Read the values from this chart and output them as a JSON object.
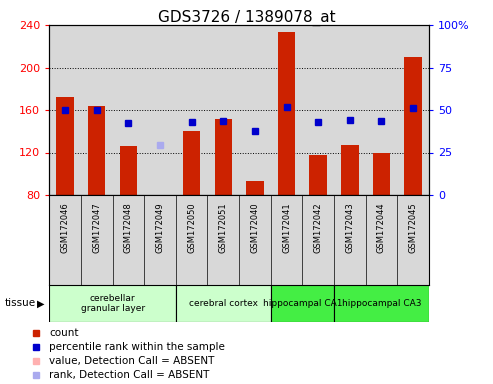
{
  "title": "GDS3726 / 1389078_at",
  "samples": [
    "GSM172046",
    "GSM172047",
    "GSM172048",
    "GSM172049",
    "GSM172050",
    "GSM172051",
    "GSM172040",
    "GSM172041",
    "GSM172042",
    "GSM172043",
    "GSM172044",
    "GSM172045"
  ],
  "count_values": [
    172,
    164,
    126,
    null,
    140,
    152,
    93,
    233,
    118,
    127,
    120,
    210
  ],
  "absent_bar_value": [
    null,
    null,
    null,
    80,
    null,
    null,
    null,
    null,
    null,
    null,
    null,
    null
  ],
  "percentile_values": [
    160,
    160,
    148,
    null,
    149,
    150,
    140,
    163,
    149,
    151,
    150,
    162
  ],
  "absent_percentile_value": [
    null,
    null,
    null,
    127,
    null,
    null,
    null,
    null,
    null,
    null,
    null,
    null
  ],
  "left_ylim": [
    80,
    240
  ],
  "left_yticks": [
    80,
    120,
    160,
    200,
    240
  ],
  "right_ylim": [
    0,
    100
  ],
  "right_yticks": [
    0,
    25,
    50,
    75,
    100
  ],
  "right_yticklabels": [
    "0",
    "25",
    "50",
    "75",
    "100%"
  ],
  "bar_color": "#cc2200",
  "absent_bar_color": "#ffb0b0",
  "dot_color": "#0000cc",
  "absent_dot_color": "#aaaaee",
  "bar_width": 0.55,
  "tissues": [
    {
      "label": "cerebellar\ngranular layer",
      "start": 0,
      "end": 3,
      "color": "#ccffcc"
    },
    {
      "label": "cerebral cortex",
      "start": 4,
      "end": 6,
      "color": "#ccffcc"
    },
    {
      "label": "hippocampal CA1",
      "start": 7,
      "end": 8,
      "color": "#44ee44"
    },
    {
      "label": "hippocampal CA3",
      "start": 9,
      "end": 11,
      "color": "#44ee44"
    }
  ],
  "plot_bg": "#ffffff",
  "axis_bg": "#d8d8d8",
  "title_fontsize": 11,
  "ytick_fontsize": 8,
  "sample_fontsize": 6,
  "legend_fontsize": 7.5
}
